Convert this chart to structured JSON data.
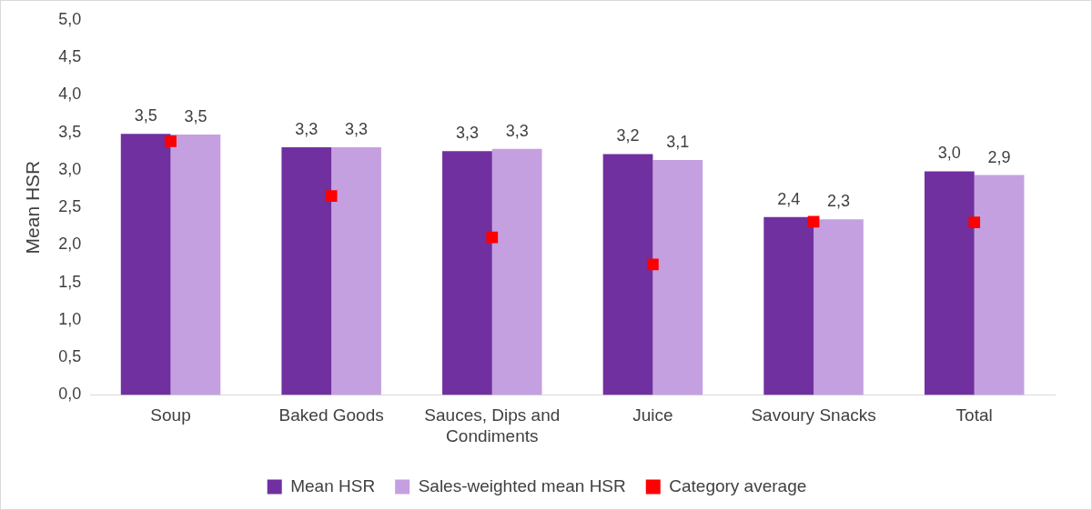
{
  "chart_data": {
    "type": "bar",
    "ylabel": "Mean HSR",
    "categories": [
      "Soup",
      "Baked Goods",
      "Sauces, Dips and Condiments",
      "Juice",
      "Savoury Snacks",
      "Total"
    ],
    "series": [
      {
        "name": "Mean HSR",
        "color": "#7030a0",
        "values": [
          3.48,
          3.3,
          3.25,
          3.21,
          2.37,
          2.98
        ],
        "value_labels": [
          "3,5",
          "3,3",
          "3,3",
          "3,2",
          "2,4",
          "3,0"
        ]
      },
      {
        "name": "Sales-weighted mean HSR",
        "color": "#c5a0e0",
        "values": [
          3.47,
          3.3,
          3.28,
          3.13,
          2.34,
          2.93
        ],
        "value_labels": [
          "3,5",
          "3,3",
          "3,3",
          "3,1",
          "2,3",
          "2,9"
        ]
      },
      {
        "name": "Category average",
        "type": "scatter",
        "marker": "square",
        "color": "#ff0000",
        "values": [
          3.38,
          2.65,
          2.1,
          1.74,
          2.31,
          2.3
        ]
      }
    ],
    "ylim": [
      0,
      5
    ],
    "yticks": [
      {
        "value": 0,
        "label": "0,0"
      },
      {
        "value": 0.5,
        "label": "0,5"
      },
      {
        "value": 1,
        "label": "1,0"
      },
      {
        "value": 1.5,
        "label": "1,5"
      },
      {
        "value": 2,
        "label": "2,0"
      },
      {
        "value": 2.5,
        "label": "2,5"
      },
      {
        "value": 3,
        "label": "3,0"
      },
      {
        "value": 3.5,
        "label": "3,5"
      },
      {
        "value": 4,
        "label": "4,0"
      },
      {
        "value": 4.5,
        "label": "4,5"
      },
      {
        "value": 5,
        "label": "5,0"
      }
    ],
    "grid": false,
    "legend": "bottom"
  }
}
